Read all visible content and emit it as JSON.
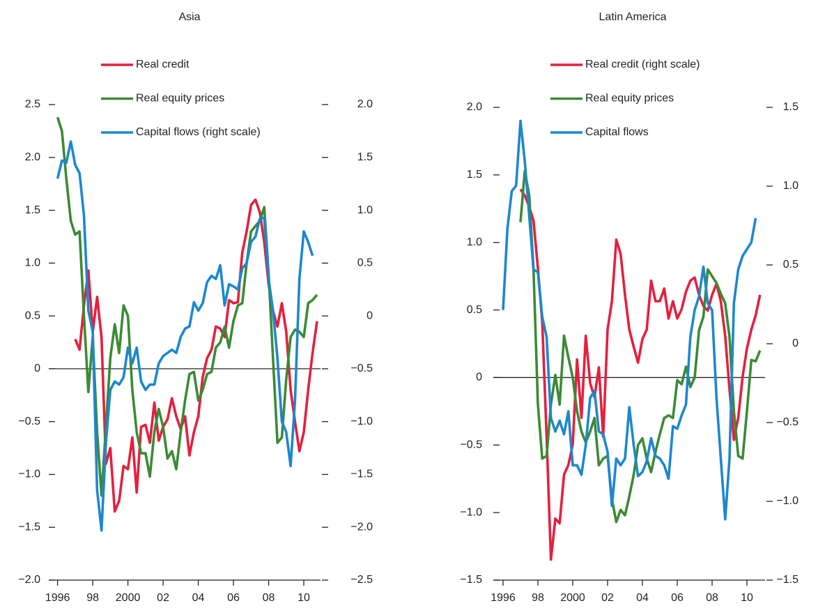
{
  "chart_data": [
    {
      "type": "line",
      "title": "Asia",
      "x": [
        1996,
        1996.25,
        1996.5,
        1996.75,
        1997,
        1997.25,
        1997.5,
        1997.75,
        1998,
        1998.25,
        1998.5,
        1998.75,
        1999,
        1999.25,
        1999.5,
        1999.75,
        2000,
        2000.25,
        2000.5,
        2000.75,
        2001,
        2001.25,
        2001.5,
        2001.75,
        2002,
        2002.25,
        2002.5,
        2002.75,
        2003,
        2003.25,
        2003.5,
        2003.75,
        2004,
        2004.25,
        2004.5,
        2004.75,
        2005,
        2005.25,
        2005.5,
        2005.75,
        2006,
        2006.25,
        2006.5,
        2006.75,
        2007,
        2007.25,
        2007.5,
        2007.75,
        2008,
        2008.25,
        2008.5,
        2008.75,
        2009,
        2009.25,
        2009.5,
        2009.75,
        2010,
        2010.25,
        2010.5,
        2010.75
      ],
      "xlim": [
        1995.5,
        2010.95
      ],
      "xticks": [
        1996,
        {
          "value": 1998,
          "label": "98"
        },
        2000,
        {
          "value": 2002,
          "label": "02"
        },
        {
          "value": 2004,
          "label": "04"
        },
        {
          "value": 2006,
          "label": "06"
        },
        {
          "value": 2008,
          "label": "08"
        },
        {
          "value": 2010,
          "label": "10"
        }
      ],
      "ylim": [
        -2.0,
        2.5
      ],
      "yticks": [
        {
          "value": -2.0,
          "label": "−2.0"
        },
        {
          "value": -1.5,
          "label": "−1.5"
        },
        {
          "value": -1.0,
          "label": "−1.0"
        },
        {
          "value": -0.5,
          "label": "−0.5"
        },
        0,
        {
          "value": 0.5,
          "label": "0.5"
        },
        {
          "value": 1.0,
          "label": "1.0"
        },
        {
          "value": 1.5,
          "label": "1.5"
        },
        {
          "value": 2.0,
          "label": "2.0"
        },
        {
          "value": 2.5,
          "label": "2.5"
        }
      ],
      "y2lim": [
        -2.5,
        2.0
      ],
      "y2ticks": [
        {
          "value": -2.5,
          "label": "−2.5"
        },
        {
          "value": -2.0,
          "label": "−2.0"
        },
        {
          "value": -1.5,
          "label": "−1.5"
        },
        {
          "value": -1.0,
          "label": "−1.0"
        },
        {
          "value": -0.5,
          "label": "−0.5"
        },
        0,
        {
          "value": 0.5,
          "label": "0.5"
        },
        {
          "value": 1.0,
          "label": "1.0"
        },
        {
          "value": 1.5,
          "label": "1.5"
        },
        {
          "value": 2.0,
          "label": "2.0"
        }
      ],
      "series": [
        {
          "name": "Real credit",
          "color": "#e3203f",
          "axis": "y",
          "values": [
            null,
            null,
            null,
            null,
            0.28,
            0.18,
            0.6,
            0.93,
            0.35,
            0.68,
            0.3,
            -0.9,
            -0.75,
            -1.35,
            -1.25,
            -0.92,
            -0.95,
            -0.65,
            -1.17,
            -0.55,
            -0.53,
            -0.7,
            -0.32,
            -0.68,
            -0.55,
            -0.48,
            -0.28,
            -0.45,
            -0.57,
            -0.45,
            -0.82,
            -0.6,
            -0.45,
            -0.08,
            0.1,
            0.18,
            0.4,
            0.38,
            0.3,
            0.65,
            0.62,
            0.63,
            1.1,
            1.3,
            1.55,
            1.6,
            1.48,
            1.2,
            0.8,
            0.55,
            0.4,
            0.62,
            0.35,
            -0.2,
            -0.5,
            -0.78,
            -0.6,
            -0.2,
            0.15,
            0.45
          ]
        },
        {
          "name": "Real equity prices",
          "color": "#3b8a35",
          "axis": "y",
          "values": [
            2.38,
            2.25,
            1.8,
            1.4,
            1.27,
            1.3,
            0.5,
            -0.22,
            0.3,
            -0.6,
            -1.2,
            -0.55,
            0.1,
            0.42,
            0.15,
            0.6,
            0.5,
            -0.2,
            -0.6,
            -0.8,
            -0.8,
            -1.02,
            -0.6,
            -0.38,
            -0.55,
            -0.85,
            -0.78,
            -0.95,
            -0.6,
            -0.3,
            -0.05,
            -0.03,
            -0.3,
            -0.2,
            -0.05,
            -0.03,
            0.2,
            0.25,
            0.4,
            0.2,
            0.45,
            0.6,
            0.62,
            1.0,
            1.3,
            1.35,
            1.4,
            1.53,
            0.9,
            0.1,
            -0.7,
            -0.65,
            -0.1,
            0.3,
            0.37,
            0.35,
            0.3,
            0.62,
            0.65,
            0.7
          ]
        },
        {
          "name": "Capital flows (right scale)",
          "color": "#1d87cf",
          "axis": "y2",
          "values": [
            1.3,
            1.47,
            1.45,
            1.65,
            1.43,
            1.35,
            0.95,
            0.05,
            -0.15,
            -1.65,
            -2.03,
            -1.2,
            -0.7,
            -0.62,
            -0.65,
            -0.58,
            -0.3,
            -0.45,
            -0.3,
            -0.62,
            -0.7,
            -0.65,
            -0.65,
            -0.45,
            -0.38,
            -0.35,
            -0.32,
            -0.35,
            -0.2,
            -0.12,
            -0.1,
            0.13,
            0.05,
            0.12,
            0.32,
            0.38,
            0.35,
            0.48,
            0.1,
            0.3,
            0.28,
            0.25,
            0.45,
            0.5,
            0.7,
            0.75,
            0.92,
            0.93,
            0.35,
            0.05,
            -0.4,
            -1.0,
            -1.1,
            -1.42,
            -0.8,
            0.35,
            0.8,
            0.7,
            0.57,
            null
          ]
        }
      ]
    },
    {
      "type": "line",
      "title": "Latin America",
      "x": [
        1996,
        1996.25,
        1996.5,
        1996.75,
        1997,
        1997.25,
        1997.5,
        1997.75,
        1998,
        1998.25,
        1998.5,
        1998.75,
        1999,
        1999.25,
        1999.5,
        1999.75,
        2000,
        2000.25,
        2000.5,
        2000.75,
        2001,
        2001.25,
        2001.5,
        2001.75,
        2002,
        2002.25,
        2002.5,
        2002.75,
        2003,
        2003.25,
        2003.5,
        2003.75,
        2004,
        2004.25,
        2004.5,
        2004.75,
        2005,
        2005.25,
        2005.5,
        2005.75,
        2006,
        2006.25,
        2006.5,
        2006.75,
        2007,
        2007.25,
        2007.5,
        2007.75,
        2008,
        2008.25,
        2008.5,
        2008.75,
        2009,
        2009.25,
        2009.5,
        2009.75,
        2010,
        2010.25,
        2010.5,
        2010.75
      ],
      "xlim": [
        1995.44,
        2011.04
      ],
      "xticks": [
        1996,
        {
          "value": 1998,
          "label": "98"
        },
        2000,
        {
          "value": 2002,
          "label": "02"
        },
        {
          "value": 2004,
          "label": "04"
        },
        {
          "value": 2006,
          "label": "06"
        },
        {
          "value": 2008,
          "label": "08"
        },
        {
          "value": 2010,
          "label": "10"
        }
      ],
      "ylim": [
        -1.5,
        2.0
      ],
      "yticks": [
        {
          "value": -1.5,
          "label": "−1.5"
        },
        {
          "value": -1.0,
          "label": "−1.0"
        },
        {
          "value": -0.5,
          "label": "−0.5"
        },
        0,
        {
          "value": 0.5,
          "label": "0.5"
        },
        {
          "value": 1.0,
          "label": "1.0"
        },
        {
          "value": 1.5,
          "label": "1.5"
        },
        {
          "value": 2.0,
          "label": "2.0"
        }
      ],
      "y2lim": [
        -1.5,
        1.5
      ],
      "y2ticks": [
        {
          "value": -1.5,
          "label": "−1.5"
        },
        {
          "value": -1.0,
          "label": "−1.0"
        },
        {
          "value": -0.5,
          "label": "−0.5"
        },
        0,
        {
          "value": 0.5,
          "label": "0.5"
        },
        {
          "value": 1.0,
          "label": "1.0"
        },
        {
          "value": 1.5,
          "label": "1.5"
        }
      ],
      "series": [
        {
          "name": "Real credit (right scale)",
          "color": "#e3203f",
          "axis": "y2",
          "values": [
            null,
            null,
            null,
            null,
            0.98,
            0.94,
            0.87,
            0.78,
            0.48,
            0.14,
            -0.59,
            -1.37,
            -1.11,
            -1.14,
            -0.83,
            -0.77,
            -0.64,
            -0.1,
            -0.47,
            0.05,
            -0.25,
            -0.34,
            -0.15,
            -0.59,
            0.09,
            0.27,
            0.66,
            0.57,
            0.31,
            0.09,
            -0.02,
            -0.12,
            0.03,
            0.09,
            0.4,
            0.27,
            0.27,
            0.35,
            0.16,
            0.27,
            0.16,
            0.22,
            0.33,
            0.4,
            0.42,
            0.31,
            0.24,
            0.21,
            0.31,
            0.38,
            0.27,
            0.05,
            -0.29,
            -0.61,
            -0.47,
            -0.21,
            -0.03,
            0.09,
            0.18,
            0.31
          ]
        },
        {
          "name": "Real equity prices",
          "color": "#3b8a35",
          "axis": "y",
          "values": [
            null,
            null,
            null,
            null,
            1.15,
            1.53,
            1.35,
            0.8,
            -0.2,
            -0.6,
            -0.58,
            -0.2,
            0.02,
            -0.2,
            0.31,
            0.15,
            0.0,
            -0.25,
            -0.4,
            -0.48,
            -0.4,
            -0.3,
            -0.65,
            -0.6,
            -0.58,
            -0.9,
            -1.07,
            -0.98,
            -1.02,
            -0.88,
            -0.72,
            -0.5,
            -0.45,
            -0.6,
            -0.7,
            -0.55,
            -0.42,
            -0.3,
            -0.28,
            -0.3,
            -0.02,
            -0.05,
            0.08,
            -0.07,
            0.0,
            0.35,
            0.45,
            0.8,
            0.75,
            0.7,
            0.62,
            0.55,
            0.3,
            -0.25,
            -0.58,
            -0.6,
            -0.25,
            0.13,
            0.12,
            0.2
          ]
        },
        {
          "name": "Capital flows",
          "color": "#1d87cf",
          "axis": "y",
          "values": [
            0.5,
            1.1,
            1.38,
            1.42,
            1.9,
            1.6,
            1.2,
            0.8,
            0.78,
            0.45,
            0.3,
            -0.3,
            -0.4,
            -0.32,
            -0.42,
            -0.25,
            -0.65,
            -0.65,
            -0.72,
            -0.5,
            -0.15,
            -0.1,
            -0.4,
            -0.42,
            -0.55,
            -0.95,
            -0.6,
            -0.65,
            -0.6,
            -0.22,
            -0.5,
            -0.73,
            -0.7,
            -0.62,
            -0.45,
            -0.58,
            -0.6,
            -0.65,
            -0.75,
            -0.36,
            -0.38,
            -0.28,
            -0.2,
            0.3,
            0.5,
            0.6,
            0.82,
            0.55,
            0.5,
            -0.15,
            -0.6,
            -1.05,
            -0.6,
            0.55,
            0.8,
            0.9,
            0.95,
            1.0,
            1.18,
            null
          ]
        }
      ]
    }
  ]
}
